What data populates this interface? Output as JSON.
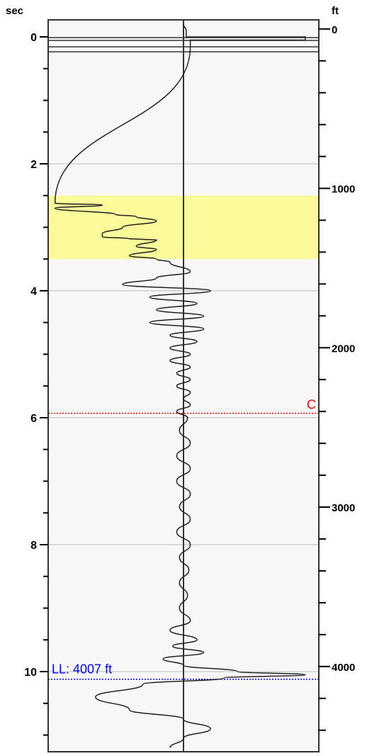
{
  "chart_data": {
    "type": "line",
    "left_axis": {
      "unit": "sec",
      "range": [
        -0.2,
        11.2
      ],
      "major_ticks": [
        0,
        2,
        4,
        6,
        8,
        10
      ],
      "minor_step": 0.5
    },
    "right_axis": {
      "unit": "ft",
      "range": [
        -30,
        4510
      ],
      "major_ticks": [
        0,
        1000,
        2000,
        3000,
        4000
      ],
      "minor_step": 200
    },
    "grid": "horizontal at left-axis major ticks",
    "highlight_band": {
      "from_sec": 2.5,
      "to_sec": 3.5,
      "color": "#fafa9a"
    },
    "markers": [
      {
        "name": "C",
        "at_sec": 5.93,
        "color": "#ff0000",
        "style": "dotted",
        "label_position": "right"
      },
      {
        "name": "LL: 4007 ft",
        "at_sec": 10.12,
        "color": "#0000ff",
        "style": "dotted",
        "label_position": "left"
      }
    ],
    "series": [
      {
        "x_range": [
          -1,
          1
        ],
        "points": [
          [
            0.0,
            -0.2
          ],
          [
            0.02,
            -0.1
          ],
          [
            0.02,
            0.0
          ],
          [
            0.9,
            0.0
          ],
          [
            0.9,
            0.05
          ],
          [
            0.05,
            0.05
          ],
          [
            0.05,
            0.15
          ],
          [
            -0.95,
            2.62
          ],
          [
            -0.6,
            2.65
          ],
          [
            -0.95,
            2.7
          ],
          [
            -0.5,
            2.8
          ],
          [
            -0.35,
            2.83
          ],
          [
            -0.2,
            2.9
          ],
          [
            -0.45,
            3.0
          ],
          [
            -0.6,
            3.1
          ],
          [
            -0.6,
            3.15
          ],
          [
            -0.4,
            3.18
          ],
          [
            -0.2,
            3.2
          ],
          [
            -0.35,
            3.3
          ],
          [
            -0.2,
            3.35
          ],
          [
            -0.4,
            3.45
          ],
          [
            -0.2,
            3.5
          ],
          [
            -0.1,
            3.55
          ],
          [
            0.05,
            3.7
          ],
          [
            -0.2,
            3.8
          ],
          [
            -0.45,
            3.9
          ],
          [
            0.2,
            4.0
          ],
          [
            -0.25,
            4.1
          ],
          [
            0.1,
            4.2
          ],
          [
            -0.2,
            4.3
          ],
          [
            0.15,
            4.4
          ],
          [
            -0.25,
            4.5
          ],
          [
            0.15,
            4.6
          ],
          [
            -0.1,
            4.7
          ],
          [
            0.1,
            4.8
          ],
          [
            -0.1,
            4.9
          ],
          [
            0.05,
            5.0
          ],
          [
            -0.1,
            5.1
          ],
          [
            0.05,
            5.2
          ],
          [
            -0.05,
            5.3
          ],
          [
            0.05,
            5.4
          ],
          [
            -0.05,
            5.5
          ],
          [
            0.05,
            5.6
          ],
          [
            0.0,
            5.7
          ],
          [
            0.05,
            5.8
          ],
          [
            -0.05,
            5.9
          ],
          [
            0.03,
            6.0
          ],
          [
            -0.03,
            6.2
          ],
          [
            0.05,
            6.4
          ],
          [
            -0.05,
            6.6
          ],
          [
            0.05,
            6.8
          ],
          [
            -0.05,
            7.0
          ],
          [
            0.05,
            7.2
          ],
          [
            -0.03,
            7.4
          ],
          [
            0.05,
            7.6
          ],
          [
            -0.05,
            7.8
          ],
          [
            0.05,
            8.0
          ],
          [
            -0.03,
            8.2
          ],
          [
            0.04,
            8.4
          ],
          [
            -0.03,
            8.6
          ],
          [
            0.03,
            8.8
          ],
          [
            -0.03,
            9.0
          ],
          [
            0.05,
            9.2
          ],
          [
            -0.1,
            9.35
          ],
          [
            0.1,
            9.5
          ],
          [
            -0.08,
            9.6
          ],
          [
            0.15,
            9.7
          ],
          [
            -0.15,
            9.8
          ],
          [
            0.0,
            9.9
          ],
          [
            0.4,
            10.0
          ],
          [
            0.9,
            10.05
          ],
          [
            0.3,
            10.1
          ],
          [
            -0.3,
            10.2
          ],
          [
            -0.65,
            10.4
          ],
          [
            -0.4,
            10.6
          ],
          [
            0.0,
            10.75
          ],
          [
            0.2,
            10.9
          ],
          [
            0.0,
            11.05
          ],
          [
            -0.1,
            11.2
          ]
        ]
      }
    ]
  }
}
